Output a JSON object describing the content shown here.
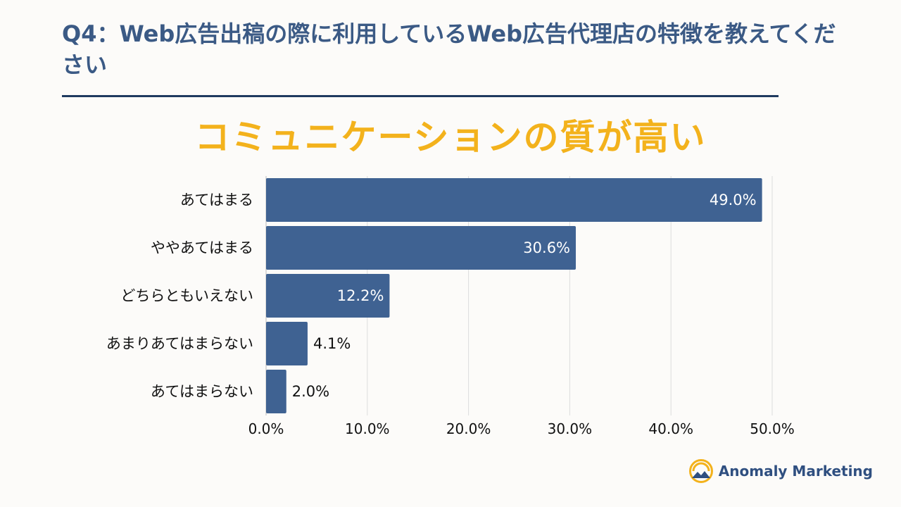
{
  "question": "Q4：Web広告出稿の際に利用しているWeb広告代理店の特徴を教えてください",
  "headline": "コミュニケーションの質が高い",
  "brand": {
    "name": "Anomaly Marketing",
    "logo_icon": "mountain-sun-logo-icon"
  },
  "colors": {
    "bar": "#3f6292",
    "title": "#3b5a85",
    "headline": "#f3b21c",
    "rule": "#1f3a5f"
  },
  "chart_data": {
    "type": "bar",
    "orientation": "horizontal",
    "categories": [
      "あてはまる",
      "ややあてはまる",
      "どちらともいえない",
      "あまりあてはまらない",
      "あてはまらない"
    ],
    "values": [
      49.0,
      30.6,
      12.2,
      4.1,
      2.0
    ],
    "data_labels": [
      "49.0%",
      "30.6%",
      "12.2%",
      "4.1%",
      "2.0%"
    ],
    "xlim": [
      0,
      50
    ],
    "xticks": [
      0,
      10,
      20,
      30,
      40,
      50
    ],
    "xtick_labels": [
      "0.0%",
      "10.0%",
      "20.0%",
      "30.0%",
      "40.0%",
      "50.0%"
    ],
    "grid": true
  }
}
